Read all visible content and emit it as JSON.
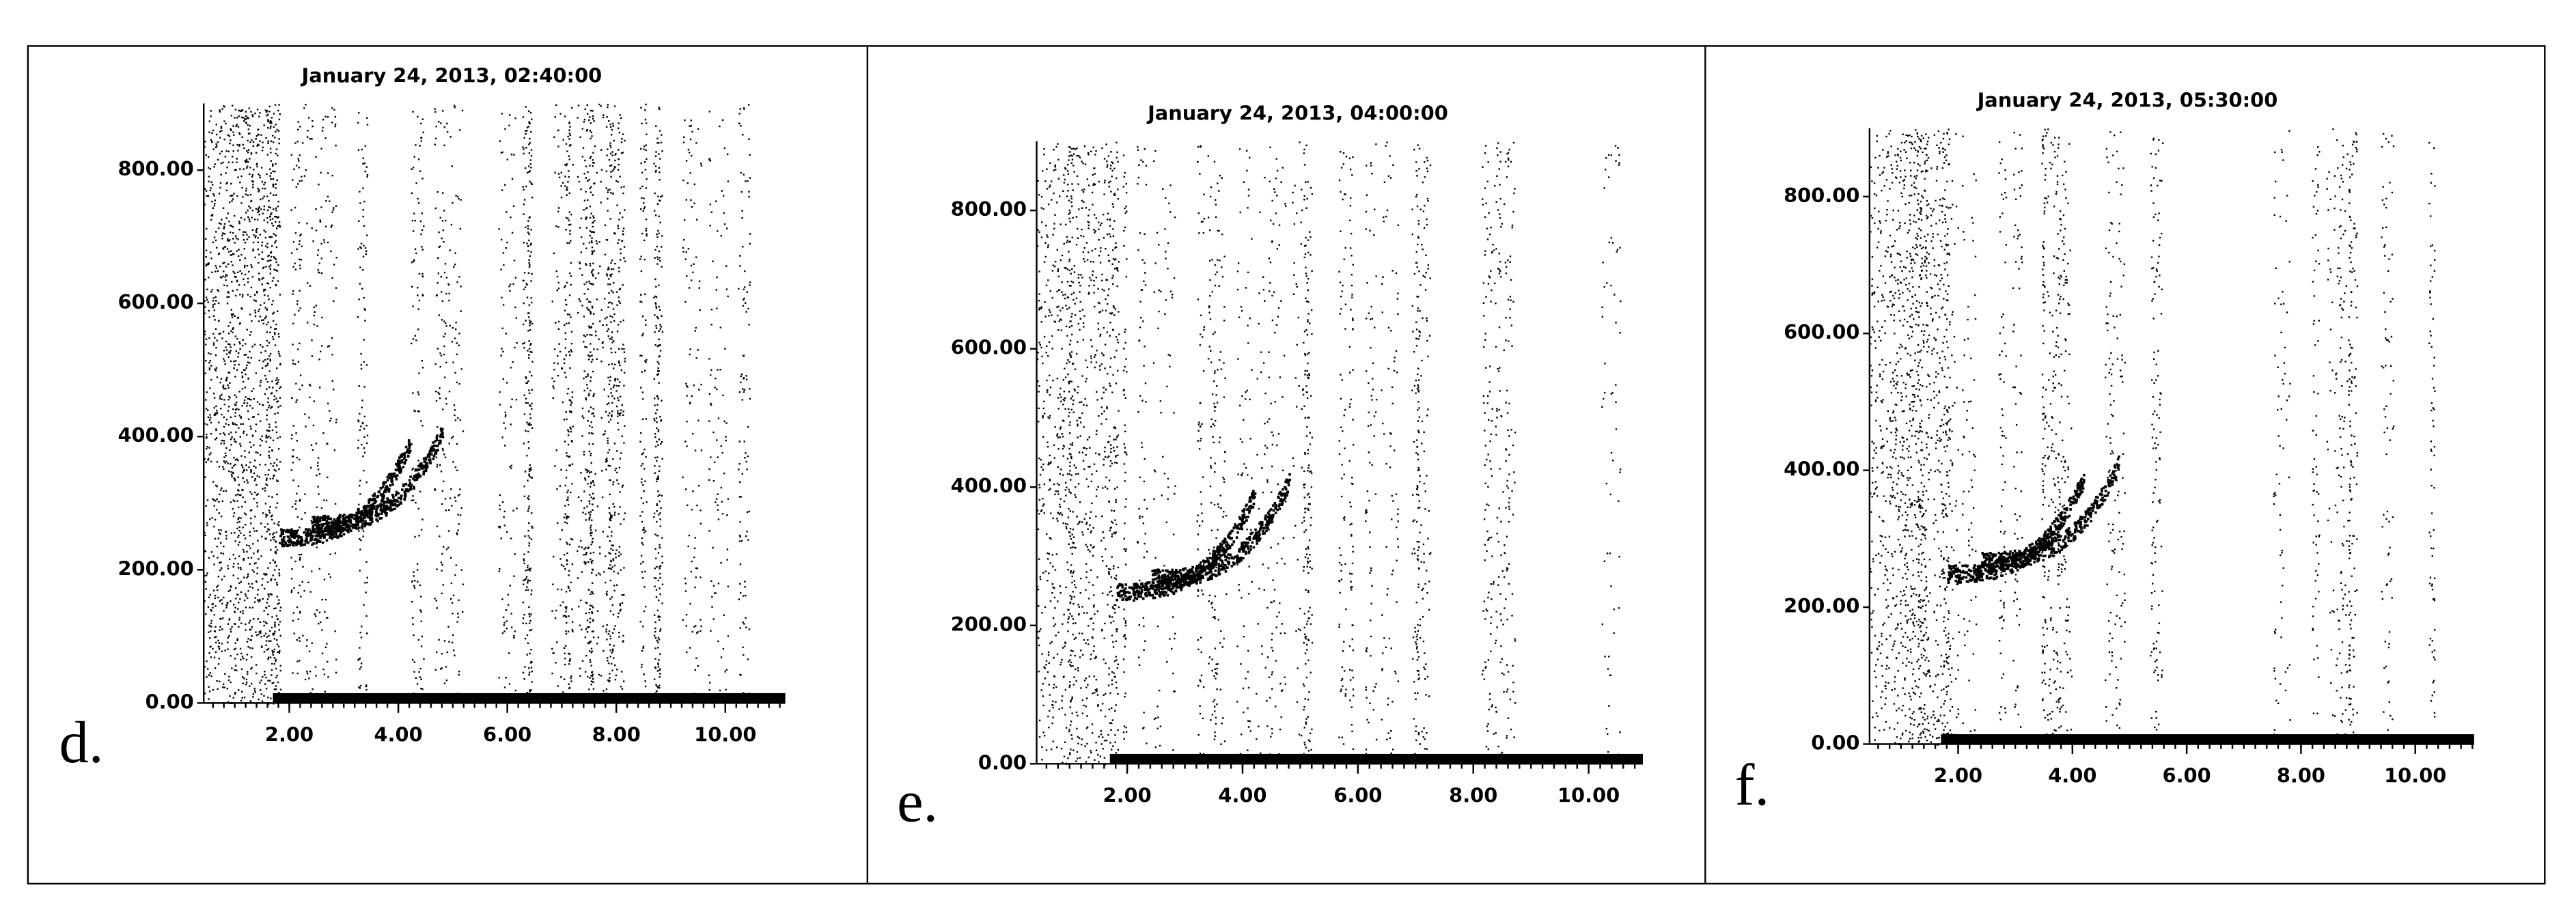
{
  "chart_data": [
    {
      "type": "scatter",
      "title": "January 24, 2013, 02:40:00",
      "label": "d.",
      "xlim": [
        0.43,
        11.1
      ],
      "ylim": [
        0,
        900
      ],
      "xticks": [
        {
          "value": 2,
          "label": "2.00"
        },
        {
          "value": 4,
          "label": "4.00"
        },
        {
          "value": 6,
          "label": "6.00"
        },
        {
          "value": 8,
          "label": "8.00"
        },
        {
          "value": 10,
          "label": "10.00"
        }
      ],
      "yticks": [
        {
          "value": 0,
          "label": "0.00"
        },
        {
          "value": 200,
          "label": "200.00"
        },
        {
          "value": 400,
          "label": "400.00"
        },
        {
          "value": 600,
          "label": "600.00"
        },
        {
          "value": 800,
          "label": "800.00"
        }
      ],
      "color": "#000000"
    },
    {
      "type": "scatter",
      "title": "January 24, 2013, 04:00:00",
      "label": "e.",
      "xlim": [
        0.43,
        10.94
      ],
      "ylim": [
        0,
        900
      ],
      "xticks": [
        {
          "value": 2,
          "label": "2.00"
        },
        {
          "value": 4,
          "label": "4.00"
        },
        {
          "value": 6,
          "label": "6.00"
        },
        {
          "value": 8,
          "label": "8.00"
        },
        {
          "value": 10,
          "label": "10.00"
        }
      ],
      "yticks": [
        {
          "value": 0,
          "label": "0.00"
        },
        {
          "value": 200,
          "label": "200.00"
        },
        {
          "value": 400,
          "label": "400.00"
        },
        {
          "value": 600,
          "label": "600.00"
        },
        {
          "value": 800,
          "label": "800.00"
        }
      ],
      "color": "#000000"
    },
    {
      "type": "scatter",
      "title": "January 24, 2013, 05:30:00",
      "label": "f.",
      "xlim": [
        0.45,
        11.03
      ],
      "ylim": [
        0,
        900
      ],
      "xticks": [
        {
          "value": 2,
          "label": "2.00"
        },
        {
          "value": 4,
          "label": "4.00"
        },
        {
          "value": 6,
          "label": "6.00"
        },
        {
          "value": 8,
          "label": "8.00"
        },
        {
          "value": 10,
          "label": "10.00"
        }
      ],
      "yticks": [
        {
          "value": 0,
          "label": "0.00"
        },
        {
          "value": 200,
          "label": "200.00"
        },
        {
          "value": 400,
          "label": "400.00"
        },
        {
          "value": 600,
          "label": "600.00"
        },
        {
          "value": 800,
          "label": "800.00"
        }
      ],
      "color": "#000000"
    }
  ]
}
